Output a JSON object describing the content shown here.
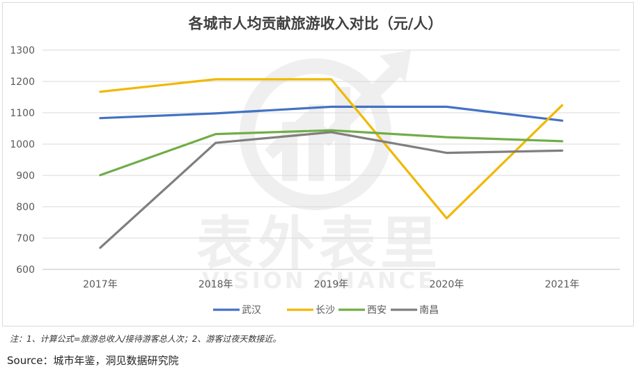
{
  "chart_data": {
    "type": "line",
    "title": "各城市人均贡献旅游收入对比（元/人）",
    "categories": [
      "2017年",
      "2018年",
      "2019年",
      "2020年",
      "2021年"
    ],
    "y_ticks": [
      "600",
      "700",
      "800",
      "900",
      "1000",
      "1100",
      "1200",
      "1300"
    ],
    "ylim": [
      600,
      1300
    ],
    "xlabel": "",
    "ylabel": "",
    "grid": true,
    "legend_position": "bottom",
    "series": [
      {
        "name": "武汉",
        "color": "#4472c4",
        "values": [
          1083,
          1098,
          1119,
          1119,
          1075
        ]
      },
      {
        "name": "长沙",
        "color": "#f0b800",
        "values": [
          1167,
          1207,
          1207,
          763,
          1124
        ]
      },
      {
        "name": "西安",
        "color": "#70ad47",
        "values": [
          901,
          1032,
          1044,
          1022,
          1009
        ]
      },
      {
        "name": "南昌",
        "color": "#7f7f7f",
        "values": [
          669,
          1004,
          1038,
          972,
          979
        ]
      }
    ]
  },
  "watermark": {
    "main": "表外表里",
    "sub": "VISION CHANCE"
  },
  "note": "注：1、计算公式=旅游总收入/接待游客总人次；2、游客过夜天数接近。",
  "source": "Source：城市年鉴，洞见数据研究院"
}
